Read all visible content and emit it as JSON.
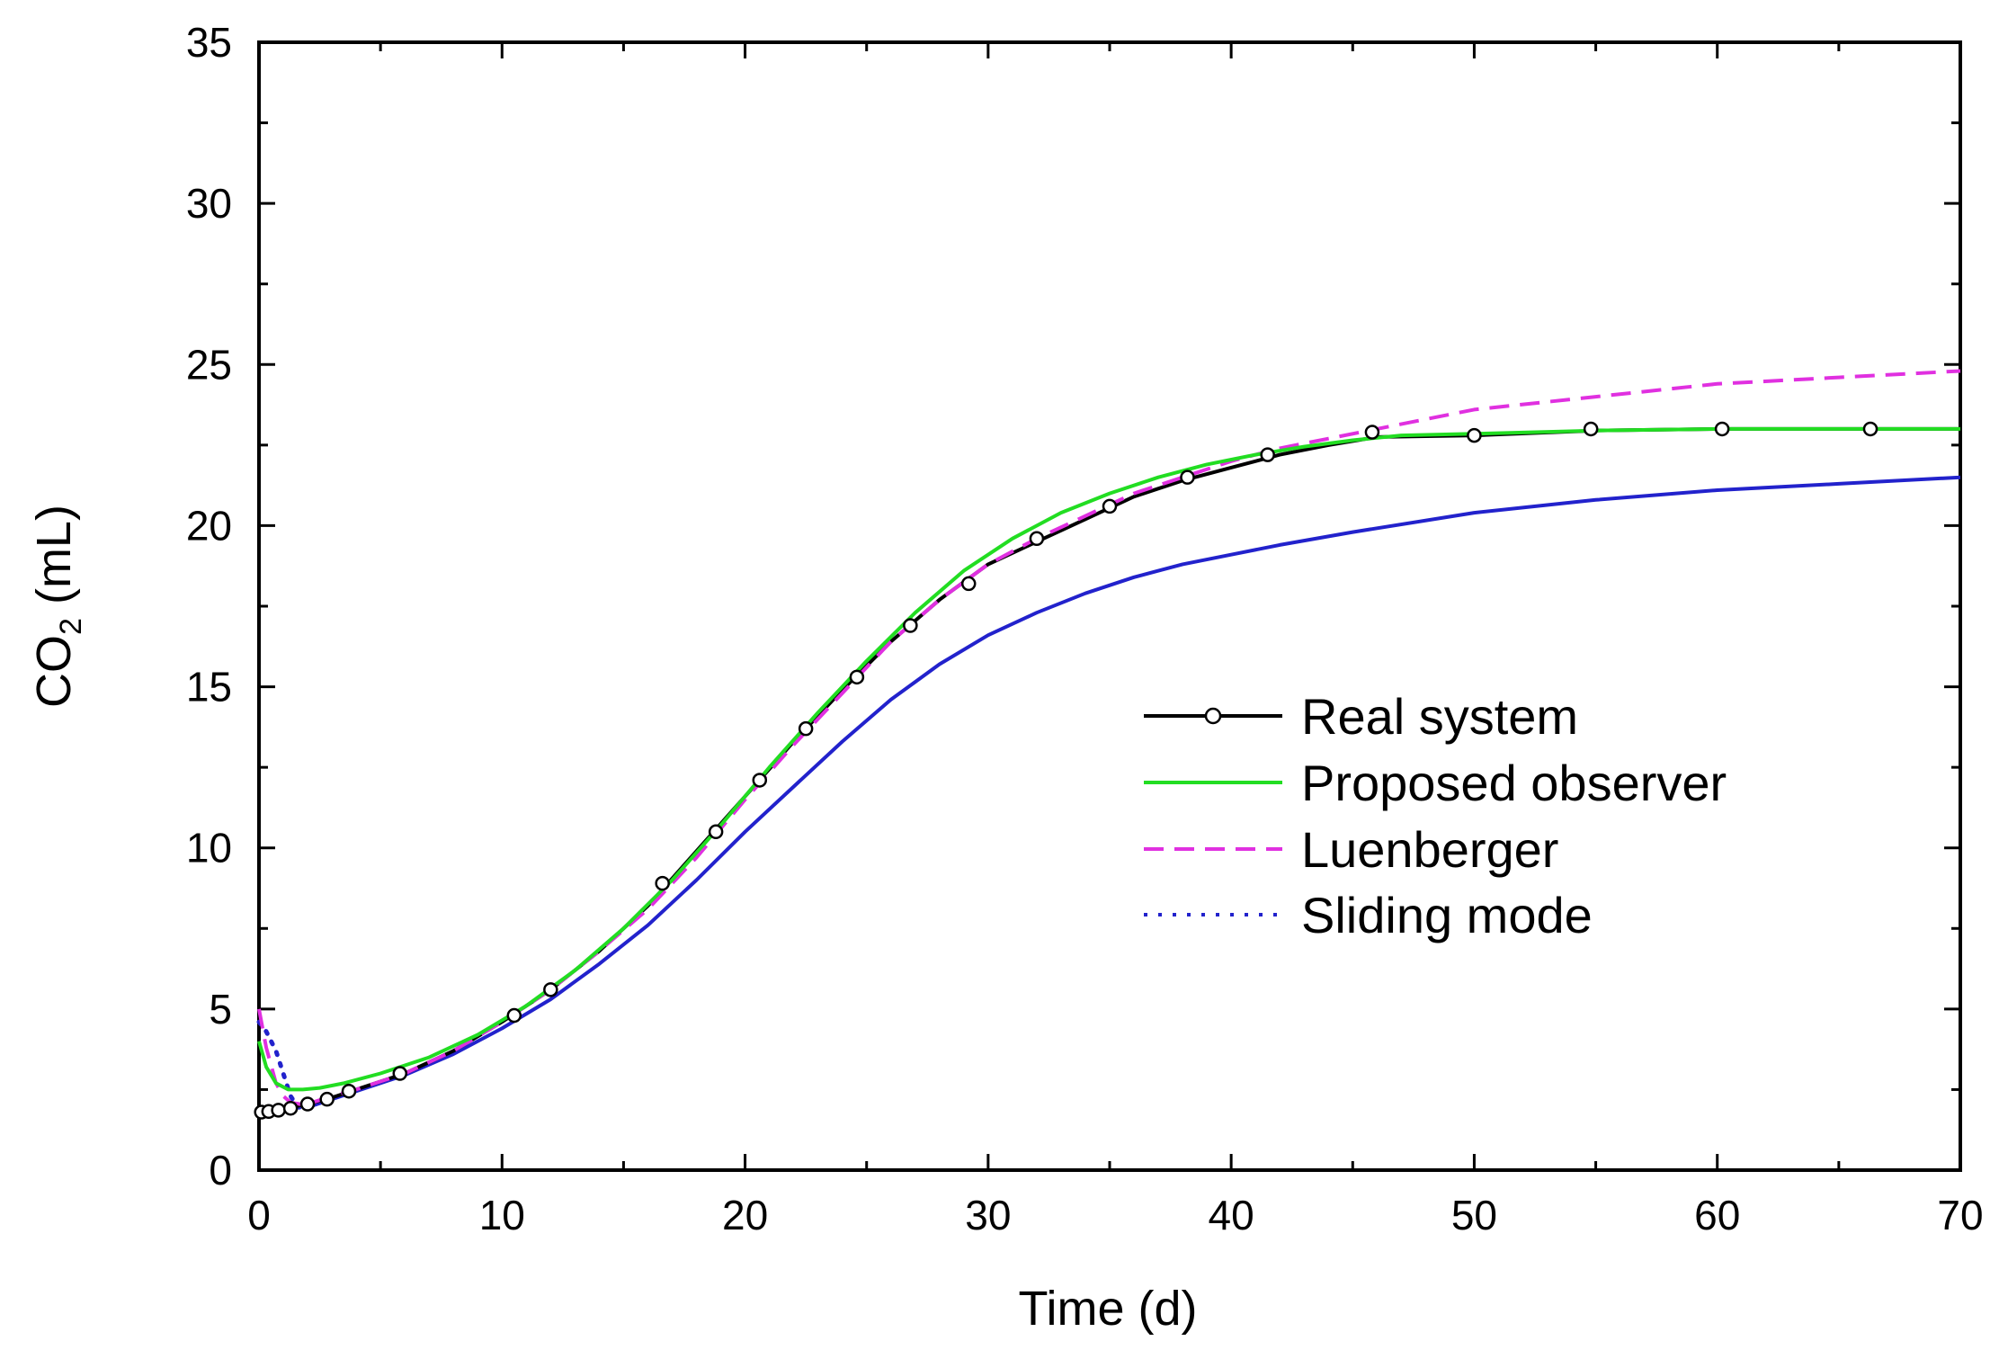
{
  "chart_data": {
    "type": "line",
    "title": "",
    "xlabel": "Time (d)",
    "ylabel": {
      "main": "CO",
      "subscript": "2",
      "suffix": " (mL)"
    },
    "xlim": [
      0,
      70
    ],
    "ylim": [
      0,
      35
    ],
    "xticks": [
      0,
      10,
      20,
      30,
      40,
      50,
      60,
      70
    ],
    "yticks": [
      0,
      5,
      10,
      15,
      20,
      25,
      30,
      35
    ],
    "xtick_labels": [
      "0",
      "10",
      "20",
      "30",
      "40",
      "50",
      "60",
      "70"
    ],
    "ytick_labels": [
      "0",
      "5",
      "10",
      "15",
      "20",
      "25",
      "30",
      "35"
    ],
    "grid": false,
    "legend": {
      "position": "center-right"
    },
    "series": [
      {
        "name": "Real system",
        "color": "#000000",
        "style": "solid-circle-markers",
        "x": [
          0,
          0.5,
          1,
          1.5,
          2,
          3,
          4,
          6,
          8,
          10,
          12,
          14,
          16,
          18,
          20,
          22,
          24,
          26,
          28,
          30,
          32,
          34,
          36,
          38,
          40,
          42,
          44,
          46,
          50,
          55,
          60,
          65,
          70
        ],
        "y": [
          1.8,
          1.85,
          1.9,
          1.98,
          2.05,
          2.25,
          2.5,
          3.0,
          3.7,
          4.6,
          5.6,
          6.8,
          8.2,
          9.9,
          11.6,
          13.3,
          14.9,
          16.4,
          17.7,
          18.8,
          19.5,
          20.2,
          20.9,
          21.4,
          21.8,
          22.2,
          22.5,
          22.75,
          22.8,
          22.95,
          23.0,
          23.0,
          23.0
        ],
        "marker_x": [
          0.1,
          0.4,
          0.8,
          1.3,
          2.0,
          2.8,
          3.7,
          5.8,
          10.5,
          12.0,
          16.6,
          18.8,
          20.6,
          22.5,
          24.6,
          26.8,
          29.2,
          32.0,
          35.0,
          38.2,
          41.5,
          45.8,
          50.0,
          54.8,
          60.2,
          66.3
        ],
        "marker_y": [
          1.8,
          1.82,
          1.86,
          1.92,
          2.05,
          2.2,
          2.45,
          3.0,
          4.8,
          5.6,
          8.9,
          10.5,
          12.1,
          13.7,
          15.3,
          16.9,
          18.2,
          19.6,
          20.6,
          21.5,
          22.2,
          22.9,
          22.8,
          23.0,
          23.0,
          23.0
        ]
      },
      {
        "name": "Proposed observer",
        "color": "#22dd22",
        "style": "solid",
        "x": [
          0,
          0.3,
          0.7,
          1.2,
          1.8,
          2.5,
          3.5,
          5,
          7,
          9,
          11,
          13,
          15,
          17,
          19,
          21,
          23,
          25,
          27,
          29,
          31,
          33,
          35,
          37,
          39,
          41,
          43,
          45,
          47,
          50,
          55,
          60,
          65,
          70
        ],
        "y": [
          4.0,
          3.2,
          2.7,
          2.5,
          2.5,
          2.55,
          2.7,
          3.0,
          3.5,
          4.2,
          5.1,
          6.2,
          7.5,
          9.0,
          10.7,
          12.5,
          14.2,
          15.8,
          17.3,
          18.6,
          19.6,
          20.4,
          21.0,
          21.5,
          21.9,
          22.2,
          22.45,
          22.65,
          22.8,
          22.85,
          22.95,
          23.0,
          23.0,
          23.0
        ]
      },
      {
        "name": "Luenberger",
        "color": "#e030e0",
        "style": "dashed",
        "x": [
          0,
          0.3,
          0.7,
          1.0,
          1.3,
          1.7,
          2.2,
          3,
          4,
          6,
          8,
          10,
          12,
          14,
          16,
          18,
          20,
          22,
          24,
          26,
          28,
          30,
          32,
          34,
          36,
          38,
          40,
          42,
          44,
          46,
          50,
          55,
          60,
          65,
          70
        ],
        "y": [
          5.0,
          3.8,
          2.7,
          2.3,
          2.1,
          2.05,
          2.1,
          2.3,
          2.5,
          3.0,
          3.7,
          4.6,
          5.6,
          6.8,
          8.1,
          9.7,
          11.5,
          13.2,
          14.8,
          16.4,
          17.7,
          18.8,
          19.6,
          20.3,
          21.0,
          21.5,
          22.0,
          22.4,
          22.7,
          23.0,
          23.6,
          24.0,
          24.4,
          24.6,
          24.8
        ]
      },
      {
        "name": "Sliding mode",
        "color": "#2222cc",
        "style": "dotted-then-solid",
        "x": [
          0,
          0.3,
          0.7,
          1.0,
          1.3,
          1.6,
          2,
          3,
          4,
          6,
          8,
          10,
          12,
          14,
          16,
          18,
          20,
          22,
          24,
          26,
          28,
          30,
          32,
          34,
          36,
          38,
          40,
          42,
          45,
          50,
          55,
          60,
          65,
          70
        ],
        "y": [
          4.6,
          4.3,
          3.7,
          3.0,
          2.3,
          1.95,
          1.95,
          2.2,
          2.45,
          2.95,
          3.6,
          4.4,
          5.3,
          6.4,
          7.6,
          9.0,
          10.5,
          11.9,
          13.3,
          14.6,
          15.7,
          16.6,
          17.3,
          17.9,
          18.4,
          18.8,
          19.1,
          19.4,
          19.8,
          20.4,
          20.8,
          21.1,
          21.3,
          21.5
        ]
      }
    ]
  }
}
